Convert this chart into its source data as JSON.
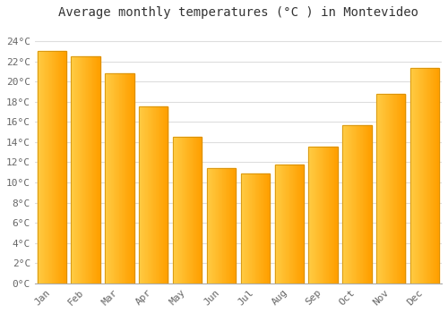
{
  "title": "Average monthly temperatures (°C ) in Montevideo",
  "months": [
    "Jan",
    "Feb",
    "Mar",
    "Apr",
    "May",
    "Jun",
    "Jul",
    "Aug",
    "Sep",
    "Oct",
    "Nov",
    "Dec"
  ],
  "temperatures": [
    23.0,
    22.5,
    20.8,
    17.5,
    14.5,
    11.4,
    10.9,
    11.8,
    13.5,
    15.7,
    18.8,
    21.3
  ],
  "bar_color_left": "#FFCC44",
  "bar_color_right": "#FFA000",
  "bar_edge_color": "#CC8800",
  "background_color": "#FFFFFF",
  "grid_color": "#DDDDDD",
  "yticks": [
    0,
    2,
    4,
    6,
    8,
    10,
    12,
    14,
    16,
    18,
    20,
    22,
    24
  ],
  "ylim": [
    0,
    25.5
  ],
  "title_fontsize": 10,
  "tick_fontsize": 8,
  "font_family": "monospace",
  "tick_color": "#666666",
  "title_color": "#333333"
}
